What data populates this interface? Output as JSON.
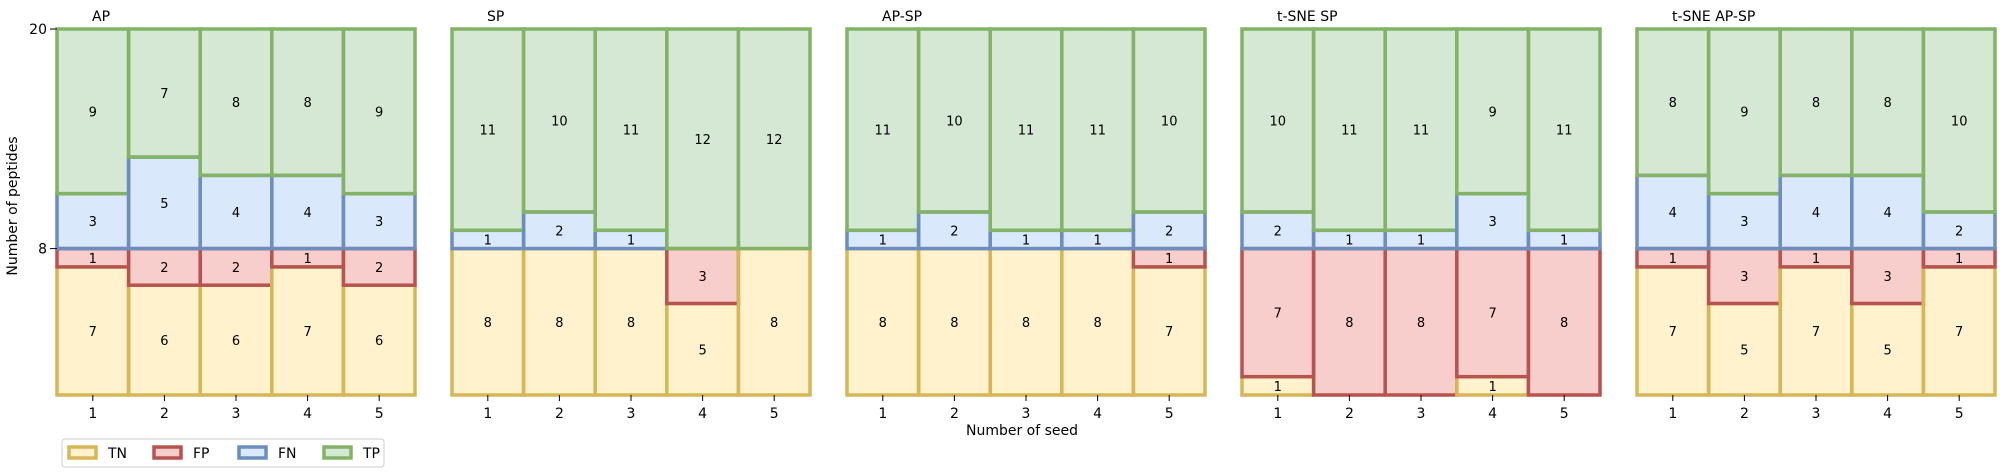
{
  "chart_data": {
    "type": "stacked-bar",
    "ylabel": "Number of peptides",
    "xlabel": "Number of seed",
    "yticks": [
      8,
      20
    ],
    "ylim": [
      0,
      20
    ],
    "categories": [
      "1",
      "2",
      "3",
      "4",
      "5"
    ],
    "stack_order": [
      "TN",
      "FP",
      "FN",
      "TP"
    ],
    "legend": {
      "position": "bottom-left",
      "items": [
        {
          "label": "TN",
          "fill": "#fff2cc",
          "edge": "#d6b656"
        },
        {
          "label": "FP",
          "fill": "#f8cecc",
          "edge": "#b85450"
        },
        {
          "label": "FN",
          "fill": "#dae8fc",
          "edge": "#6c8ebf"
        },
        {
          "label": "TP",
          "fill": "#d5e8d4",
          "edge": "#82b366"
        }
      ]
    },
    "panels": [
      {
        "title": "AP",
        "series": [
          {
            "name": "TN",
            "values": [
              7,
              6,
              6,
              7,
              6
            ]
          },
          {
            "name": "FP",
            "values": [
              1,
              2,
              2,
              1,
              2
            ]
          },
          {
            "name": "FN",
            "values": [
              3,
              5,
              4,
              4,
              3
            ]
          },
          {
            "name": "TP",
            "values": [
              9,
              7,
              8,
              8,
              9
            ]
          }
        ]
      },
      {
        "title": "SP",
        "series": [
          {
            "name": "TN",
            "values": [
              8,
              8,
              8,
              5,
              8
            ]
          },
          {
            "name": "FP",
            "values": [
              0,
              0,
              0,
              3,
              0
            ]
          },
          {
            "name": "FN",
            "values": [
              1,
              2,
              1,
              0,
              0
            ]
          },
          {
            "name": "TP",
            "values": [
              11,
              10,
              11,
              12,
              12
            ]
          }
        ]
      },
      {
        "title": "AP-SP",
        "series": [
          {
            "name": "TN",
            "values": [
              8,
              8,
              8,
              8,
              7
            ]
          },
          {
            "name": "FP",
            "values": [
              0,
              0,
              0,
              0,
              1
            ]
          },
          {
            "name": "FN",
            "values": [
              1,
              2,
              1,
              1,
              2
            ]
          },
          {
            "name": "TP",
            "values": [
              11,
              10,
              11,
              11,
              10
            ]
          }
        ]
      },
      {
        "title": "t-SNE SP",
        "series": [
          {
            "name": "TN",
            "values": [
              1,
              0,
              0,
              1,
              0
            ]
          },
          {
            "name": "FP",
            "values": [
              7,
              8,
              8,
              7,
              8
            ]
          },
          {
            "name": "FN",
            "values": [
              2,
              1,
              1,
              3,
              1
            ]
          },
          {
            "name": "TP",
            "values": [
              10,
              11,
              11,
              9,
              11
            ]
          }
        ]
      },
      {
        "title": "t-SNE AP-SP",
        "series": [
          {
            "name": "TN",
            "values": [
              7,
              5,
              7,
              5,
              7
            ]
          },
          {
            "name": "FP",
            "values": [
              1,
              3,
              1,
              3,
              1
            ]
          },
          {
            "name": "FN",
            "values": [
              4,
              3,
              4,
              4,
              2
            ]
          },
          {
            "name": "TP",
            "values": [
              8,
              9,
              8,
              8,
              10
            ]
          }
        ]
      }
    ]
  }
}
